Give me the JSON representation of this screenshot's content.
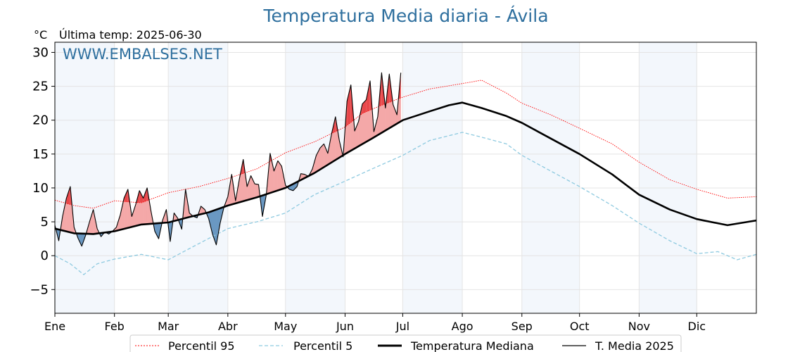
{
  "chart_data": {
    "type": "line",
    "title": "Temperatura Media diaria - Ávila",
    "unit": "°C",
    "subtitle": "Última temp: 2025-06-30",
    "watermark": "WWW.EMBALSES.NET",
    "ylim": [
      -8.5,
      31.5
    ],
    "yticks": [
      30,
      25,
      20,
      15,
      10,
      5,
      0,
      -5
    ],
    "ytick_labels": [
      "30",
      "25",
      "20",
      "15",
      "10",
      "5",
      "0",
      "−5"
    ],
    "xlim": [
      0,
      365
    ],
    "months": [
      {
        "label": "Ene",
        "start": 0,
        "end": 31
      },
      {
        "label": "Feb",
        "start": 31,
        "end": 59
      },
      {
        "label": "Mar",
        "start": 59,
        "end": 90
      },
      {
        "label": "Abr",
        "start": 90,
        "end": 120
      },
      {
        "label": "May",
        "start": 120,
        "end": 151
      },
      {
        "label": "Jun",
        "start": 151,
        "end": 181
      },
      {
        "label": "Jul",
        "start": 181,
        "end": 212
      },
      {
        "label": "Ago",
        "start": 212,
        "end": 243
      },
      {
        "label": "Sep",
        "start": 243,
        "end": 273
      },
      {
        "label": "Oct",
        "start": 273,
        "end": 304
      },
      {
        "label": "Nov",
        "start": 304,
        "end": 334
      },
      {
        "label": "Dic",
        "start": 334,
        "end": 365
      }
    ],
    "grid": true,
    "legend_position": "bottom-center",
    "colors": {
      "p95": "#ff0000",
      "p5": "#8ecae0",
      "median": "#000000",
      "current": "#000000",
      "above_fill": "#f4a8a8",
      "above_strong": "#e8474a",
      "below_fill": "#6a98c2",
      "shade": "#dce8f5",
      "title": "#2e6f9e"
    },
    "series": [
      {
        "name": "Percentil 95",
        "style": "dotted-red",
        "x": [
          0,
          10,
          20,
          31,
          45,
          59,
          75,
          90,
          105,
          120,
          135,
          151,
          160,
          170,
          181,
          195,
          212,
          222,
          235,
          243,
          258,
          273,
          290,
          304,
          320,
          334,
          350,
          365
        ],
        "y": [
          8.2,
          7.4,
          7.0,
          8.1,
          7.8,
          9.3,
          10.2,
          11.4,
          12.8,
          15.2,
          16.8,
          19.0,
          21.0,
          22.2,
          23.4,
          24.6,
          25.4,
          25.9,
          24.0,
          22.5,
          20.8,
          18.8,
          16.5,
          13.8,
          11.2,
          9.8,
          8.5,
          8.7
        ]
      },
      {
        "name": "Percentil 5",
        "style": "dashed-lightblue",
        "x": [
          0,
          8,
          15,
          22,
          31,
          45,
          59,
          75,
          90,
          105,
          120,
          135,
          151,
          165,
          181,
          195,
          212,
          222,
          235,
          243,
          258,
          273,
          290,
          304,
          320,
          334,
          345,
          355,
          365
        ],
        "y": [
          0.0,
          -1.2,
          -2.8,
          -1.2,
          -0.5,
          0.2,
          -0.6,
          1.8,
          4.0,
          5.0,
          6.3,
          9.0,
          11.0,
          12.8,
          14.8,
          17.0,
          18.2,
          17.5,
          16.5,
          14.8,
          12.5,
          10.2,
          7.4,
          4.8,
          2.2,
          0.3,
          0.6,
          -0.6,
          0.2
        ]
      },
      {
        "name": "Temperatura Mediana",
        "style": "thick-black",
        "x": [
          0,
          10,
          20,
          31,
          45,
          59,
          70,
          80,
          90,
          105,
          120,
          135,
          151,
          165,
          181,
          195,
          205,
          212,
          222,
          235,
          243,
          258,
          273,
          290,
          304,
          320,
          334,
          350,
          365
        ],
        "y": [
          4.0,
          3.3,
          3.2,
          3.6,
          4.6,
          4.9,
          5.7,
          6.4,
          7.4,
          8.6,
          10.0,
          12.2,
          15.0,
          17.3,
          20.0,
          21.3,
          22.2,
          22.6,
          21.8,
          20.6,
          19.6,
          17.3,
          15.0,
          12.0,
          9.0,
          6.8,
          5.4,
          4.5,
          5.2
        ]
      },
      {
        "name": "T. Media 2025",
        "style": "thin-black",
        "x": [
          0,
          2,
          4,
          6,
          8,
          10,
          12,
          14,
          16,
          18,
          20,
          22,
          24,
          26,
          28,
          30,
          32,
          34,
          36,
          38,
          40,
          42,
          44,
          46,
          48,
          50,
          52,
          54,
          56,
          58,
          60,
          62,
          64,
          66,
          68,
          70,
          72,
          74,
          76,
          78,
          80,
          82,
          84,
          86,
          88,
          90,
          92,
          94,
          96,
          98,
          100,
          102,
          104,
          106,
          108,
          110,
          112,
          114,
          116,
          118,
          120,
          122,
          124,
          126,
          128,
          130,
          132,
          134,
          136,
          138,
          140,
          142,
          144,
          146,
          148,
          150,
          152,
          154,
          156,
          158,
          160,
          162,
          164,
          166,
          168,
          170,
          172,
          174,
          176,
          178,
          180
        ],
        "y": [
          4.5,
          2.2,
          5.8,
          8.5,
          10.2,
          4.2,
          2.6,
          1.4,
          3.0,
          5.0,
          6.8,
          4.0,
          2.8,
          3.5,
          3.2,
          3.6,
          4.2,
          6.0,
          8.5,
          9.8,
          5.8,
          7.5,
          9.6,
          8.5,
          10.0,
          6.6,
          3.6,
          2.5,
          5.2,
          6.8,
          2.1,
          6.3,
          5.5,
          3.9,
          9.8,
          6.3,
          5.8,
          5.6,
          7.3,
          6.8,
          5.5,
          3.2,
          1.6,
          4.8,
          7.2,
          8.7,
          12.0,
          8.1,
          11.3,
          14.2,
          10.2,
          11.8,
          10.6,
          10.5,
          5.8,
          9.0,
          15.1,
          12.5,
          14.0,
          13.2,
          10.4,
          9.8,
          9.6,
          10.2,
          12.1,
          12.0,
          11.7,
          12.8,
          14.8,
          15.9,
          16.5,
          15.1,
          18.0,
          20.5,
          17.0,
          14.6,
          22.8,
          25.2,
          18.4,
          19.8,
          22.4,
          23.0,
          25.8,
          18.3,
          20.5,
          27.0,
          21.8,
          26.8,
          22.3,
          20.8,
          27.0
        ]
      }
    ]
  }
}
